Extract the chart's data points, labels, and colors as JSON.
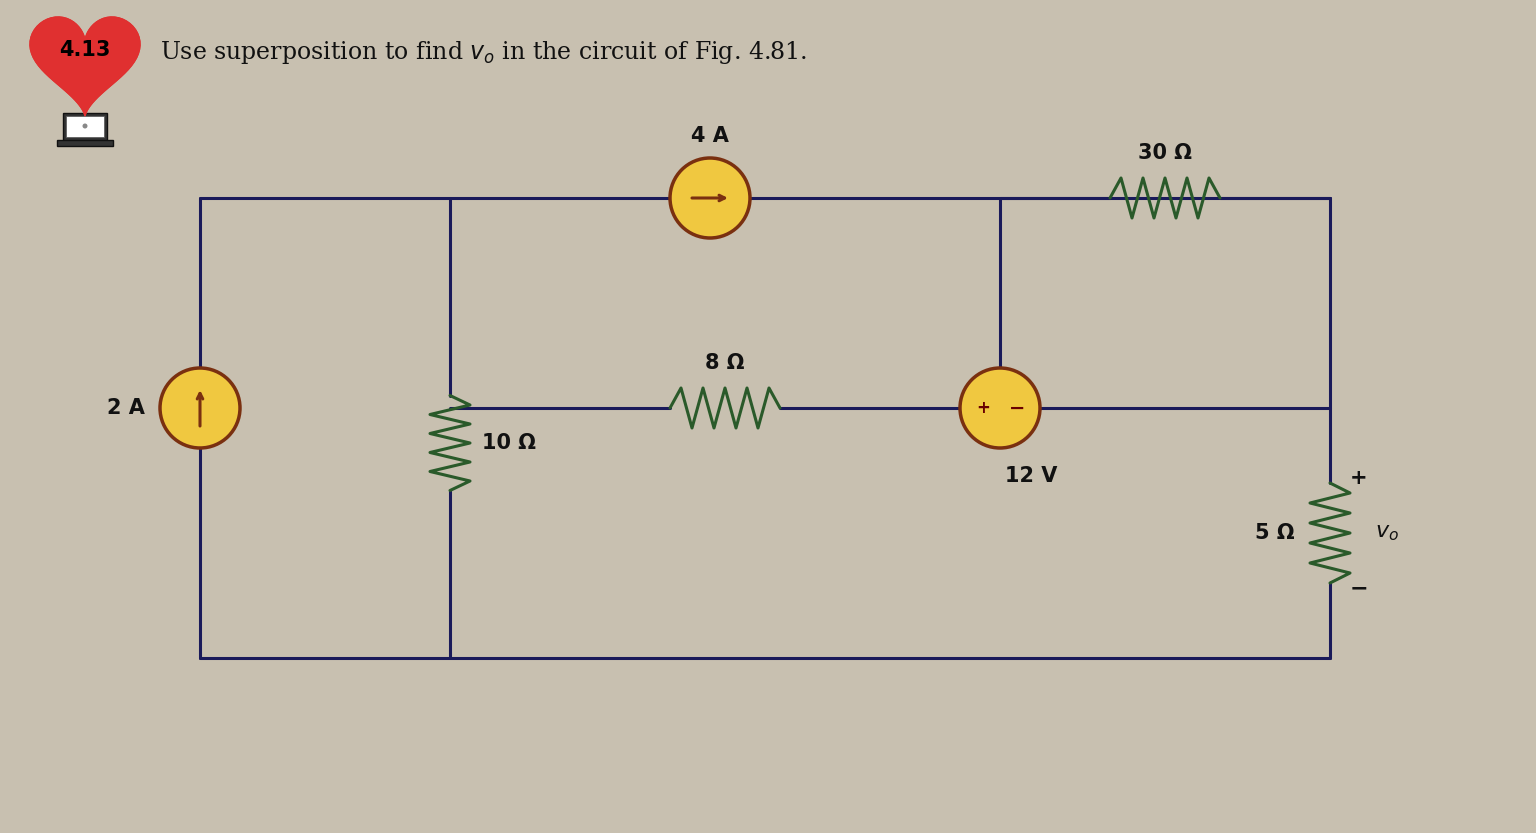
{
  "bg_color": "#c8c0b0",
  "wire_color": "#1a1a5a",
  "resistor_color": "#2a5a2a",
  "resistor_color_right": "#2a5a2a",
  "source_fill": "#f0c840",
  "source_edge": "#7a3010",
  "heart_fill": "#e03030",
  "title_num": "4.13",
  "title_text": "Use superposition to find $v_o$ in the circuit of Fig. 4.81.",
  "label_2A": "2 A",
  "label_10": "10 Ω",
  "label_8": "8 Ω",
  "label_4A": "4 A",
  "label_30": "30 Ω",
  "label_12V": "12 V",
  "label_5": "5 Ω",
  "label_vo": "$v_o$",
  "lw_wire": 2.2,
  "lw_res": 2.2,
  "source_r": 0.4,
  "font_size": 15
}
